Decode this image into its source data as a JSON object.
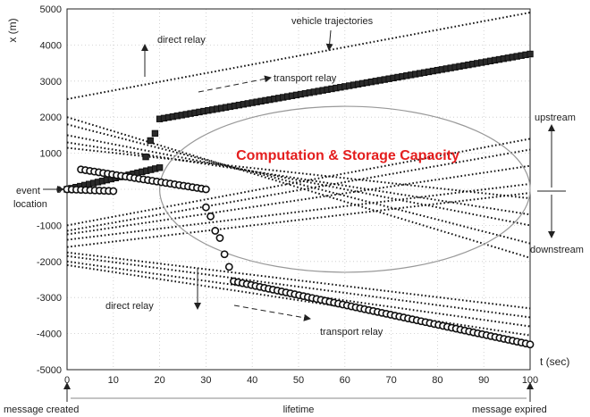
{
  "chart_data": {
    "type": "line",
    "xlabel": "t (sec)",
    "ylabel": "x (m)",
    "xlim": [
      0,
      100
    ],
    "ylim": [
      -5000,
      5000
    ],
    "x_ticks": [
      "0",
      "10",
      "20",
      "30",
      "40",
      "50",
      "60",
      "70",
      "80",
      "90",
      "100"
    ],
    "y_ticks": [
      "5000",
      "4000",
      "3000",
      "2000",
      "1000",
      "0",
      "-1000",
      "-2000",
      "-3000",
      "-4000",
      "-5000"
    ],
    "grid": true,
    "capacity_label": "Computation & Storage Capacity",
    "trajectories": [
      {
        "x": [
          0,
          100
        ],
        "y": [
          2500,
          4900
        ]
      },
      {
        "x": [
          0,
          100
        ],
        "y": [
          2000,
          -1900
        ]
      },
      {
        "x": [
          0,
          100
        ],
        "y": [
          1800,
          -1500
        ]
      },
      {
        "x": [
          0,
          100
        ],
        "y": [
          1500,
          -1000
        ]
      },
      {
        "x": [
          0,
          100
        ],
        "y": [
          1300,
          -700
        ]
      },
      {
        "x": [
          0,
          100
        ],
        "y": [
          1150,
          -250
        ]
      },
      {
        "x": [
          0,
          100
        ],
        "y": [
          -1000,
          1400
        ]
      },
      {
        "x": [
          0,
          100
        ],
        "y": [
          -1150,
          1100
        ]
      },
      {
        "x": [
          0,
          100
        ],
        "y": [
          -1250,
          650
        ]
      },
      {
        "x": [
          0,
          100
        ],
        "y": [
          -1400,
          150
        ]
      },
      {
        "x": [
          0,
          100
        ],
        "y": [
          -1600,
          -100
        ]
      },
      {
        "x": [
          0,
          100
        ],
        "y": [
          -1750,
          -3300
        ]
      },
      {
        "x": [
          0,
          100
        ],
        "y": [
          -1850,
          -3550
        ]
      },
      {
        "x": [
          0,
          100
        ],
        "y": [
          -2000,
          -3800
        ]
      },
      {
        "x": [
          0,
          100
        ],
        "y": [
          -2100,
          -4050
        ]
      }
    ],
    "relay_paths": [
      {
        "marker": "square",
        "x": [
          0,
          20
        ],
        "y": [
          0,
          600
        ]
      },
      {
        "marker": "square",
        "x": [
          20,
          100
        ],
        "y": [
          1950,
          3750
        ]
      },
      {
        "marker": "circle",
        "x": [
          0,
          10
        ],
        "y": [
          0,
          -50
        ]
      },
      {
        "marker": "circle",
        "x": [
          3,
          30
        ],
        "y": [
          550,
          0
        ]
      },
      {
        "marker": "circle",
        "x": [
          36,
          100
        ],
        "y": [
          -2550,
          -4300
        ]
      }
    ],
    "relay_points": [
      {
        "marker": "square",
        "x": 17,
        "y": 900
      },
      {
        "marker": "square",
        "x": 18,
        "y": 1350
      },
      {
        "marker": "square",
        "x": 19,
        "y": 1550
      },
      {
        "marker": "circle",
        "x": 30,
        "y": -500
      },
      {
        "marker": "circle",
        "x": 31,
        "y": -750
      },
      {
        "marker": "circle",
        "x": 32,
        "y": -1150
      },
      {
        "marker": "circle",
        "x": 33,
        "y": -1350
      },
      {
        "marker": "circle",
        "x": 34,
        "y": -1800
      },
      {
        "marker": "circle",
        "x": 35,
        "y": -2150
      }
    ],
    "capacity_ellipse": {
      "cx": 60,
      "cy": 0,
      "rx": 40,
      "ry": 2300
    },
    "annotations": {
      "vehicle_trajectories": "vehicle trajectories",
      "direct_relay_top": "direct relay",
      "transport_relay_top": "transport relay",
      "upstream": "upstream",
      "downstream": "downstream",
      "event": "event",
      "location": "location",
      "direct_relay_bottom": "direct relay",
      "transport_relay_bottom": "transport relay",
      "message_created": "message created",
      "lifetime": "lifetime",
      "message_expired": "message expired"
    }
  }
}
